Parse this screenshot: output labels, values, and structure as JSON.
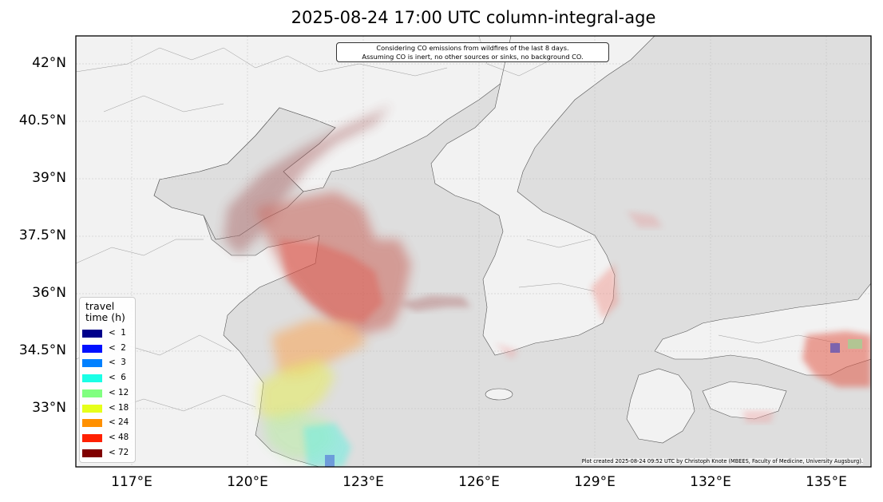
{
  "title": "2025-08-24 17:00 UTC column-integral-age",
  "note_lines": [
    "Considering CO emissions from wildfires of the last 8 days.",
    "Assuming CO is inert, no other sources or sinks, no background CO."
  ],
  "credit": "Plot created 2025-08-24 09:52 UTC by Christoph Knote (MBEES, Faculty of Medicine, University Augsburg).",
  "legend": {
    "title_line1": "travel",
    "title_line2": "time (h)",
    "items": [
      {
        "label": "<  1",
        "color": "#00008b"
      },
      {
        "label": "<  2",
        "color": "#0010ff"
      },
      {
        "label": "<  3",
        "color": "#0080ff"
      },
      {
        "label": "<  6",
        "color": "#1affe6"
      },
      {
        "label": "< 12",
        "color": "#80ff80"
      },
      {
        "label": "< 18",
        "color": "#e6ff1a"
      },
      {
        "label": "< 24",
        "color": "#ff9000"
      },
      {
        "label": "< 48",
        "color": "#ff2000"
      },
      {
        "label": "< 72",
        "color": "#800000"
      }
    ]
  },
  "axes": {
    "lat_ticks": [
      "42°N",
      "40.5°N",
      "39°N",
      "37.5°N",
      "36°N",
      "34.5°N",
      "33°N"
    ],
    "lon_ticks": [
      "117°E",
      "120°E",
      "123°E",
      "126°E",
      "129°E",
      "132°E",
      "135°E"
    ]
  },
  "colors": {
    "land": "#f2f2f2",
    "sea": "#dedede",
    "frame": "#000000"
  }
}
